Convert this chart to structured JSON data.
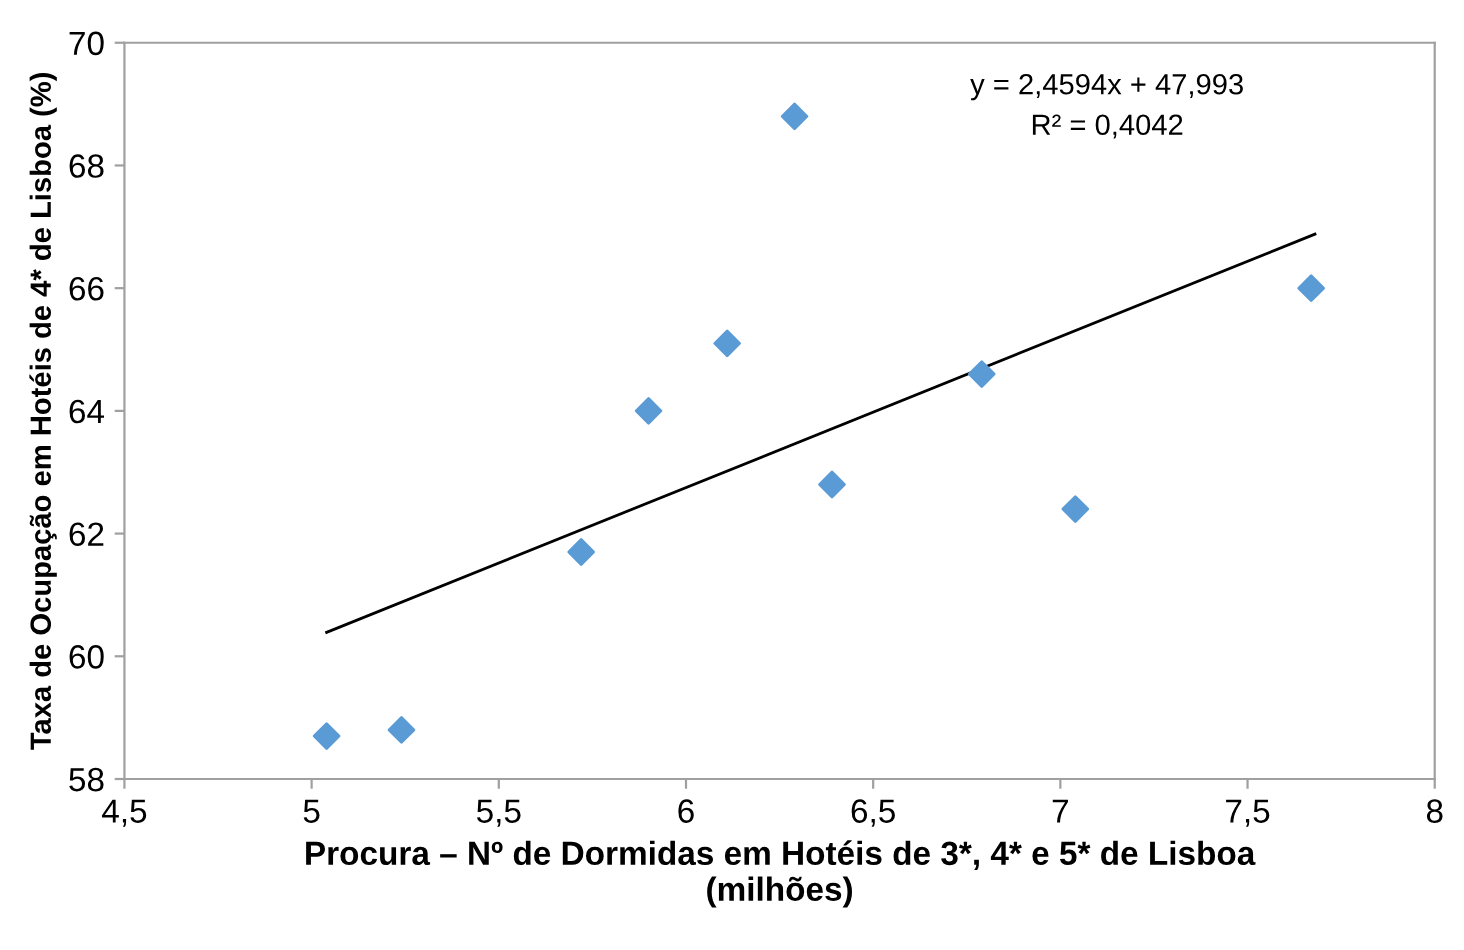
{
  "chart_data": {
    "type": "scatter",
    "xlabel": "Procura – Nº de Dormidas em Hotéis de 3*, 4* e 5* de Lisboa\n(milhões)",
    "ylabel": "Taxa de Ocupação em Hotéis de 4* de Lisboa (%)",
    "series": [
      {
        "color": "#5b9bd5",
        "marker": "diamond",
        "x": [
          5.04,
          5.24,
          5.72,
          5.9,
          6.11,
          6.29,
          6.39,
          6.79,
          7.04,
          7.67
        ],
        "values": [
          58.7,
          58.8,
          61.7,
          64.0,
          65.1,
          68.8,
          62.8,
          64.6,
          62.4,
          66.0
        ]
      },
      {
        "type": "line",
        "color": "#000000",
        "marker": "none",
        "line_style": "solid",
        "x": [
          5.04,
          7.68
        ],
        "values": [
          60.39,
          66.88
        ]
      }
    ],
    "annotations": [
      "y = 2,4594x + 47,993",
      "R² = 0,4042"
    ],
    "xlim": [
      4.5,
      8
    ],
    "xticks": [
      {
        "value": 4.5,
        "label": "4,5"
      },
      5,
      {
        "value": 5.5,
        "label": "5,5"
      },
      6,
      {
        "value": 6.5,
        "label": "6,5"
      },
      7,
      {
        "value": 7.5,
        "label": "7,5"
      },
      8
    ],
    "ylim": [
      58,
      70
    ],
    "yticks": [
      58,
      60,
      62,
      64,
      66,
      68,
      70
    ],
    "grid": false,
    "legend": false
  }
}
